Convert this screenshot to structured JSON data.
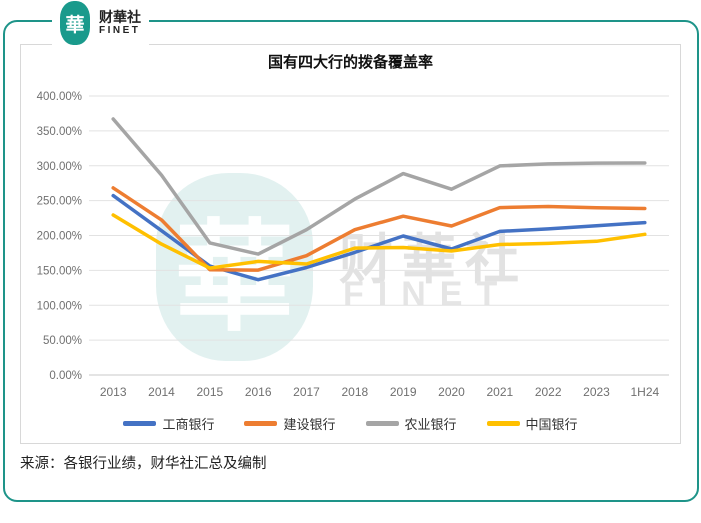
{
  "logo": {
    "seal_char": "華",
    "name_zh": "财華社",
    "name_en": "FINET"
  },
  "colors": {
    "brand_teal": "#1E9489",
    "grid_line": "#E2E2E2",
    "axis_line": "#C9C9C9",
    "tick_label": "#707070",
    "card_border": "#D8D8D8"
  },
  "chart_data": {
    "type": "line",
    "title": "国有四大行的拨备覆盖率",
    "categories": [
      "2013",
      "2014",
      "2015",
      "2016",
      "2017",
      "2018",
      "2019",
      "2020",
      "2021",
      "2022",
      "2023",
      "1H24"
    ],
    "series": [
      {
        "name": "工商银行",
        "color": "#4472C4",
        "values": [
          257.19,
          206.9,
          156.34,
          136.69,
          154.07,
          175.76,
          199.32,
          180.68,
          205.84,
          209.47,
          213.97,
          218.43
        ]
      },
      {
        "name": "建设银行",
        "color": "#ED7D31",
        "values": [
          268.22,
          222.33,
          150.99,
          150.36,
          171.08,
          208.37,
          227.69,
          213.59,
          239.96,
          241.53,
          239.85,
          238.75
        ]
      },
      {
        "name": "农业银行",
        "color": "#A5A5A5",
        "values": [
          367.04,
          286.53,
          189.43,
          173.4,
          208.37,
          252.18,
          288.75,
          266.4,
          299.73,
          302.6,
          303.87,
          303.94
        ]
      },
      {
        "name": "中国银行",
        "color": "#FFC000",
        "values": [
          229.35,
          187.6,
          153.3,
          162.82,
          159.18,
          181.97,
          182.86,
          177.84,
          187.05,
          188.73,
          191.66,
          201.69
        ]
      }
    ],
    "ylim": [
      0,
      400
    ],
    "ytick_step": 50,
    "ytick_suffix": "%",
    "grid": true,
    "legend_position": "bottom"
  },
  "watermark": {
    "seal_char": "華",
    "text_zh": "财華社",
    "text_en": "FINET"
  },
  "source_note": "来源：各银行业绩，财华社汇总及编制"
}
